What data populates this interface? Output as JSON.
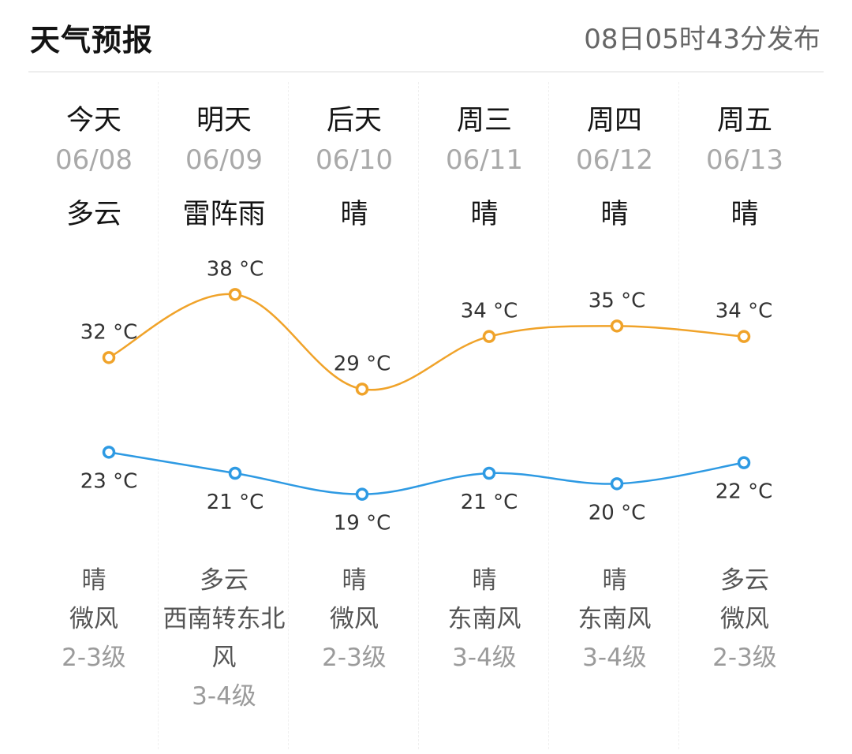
{
  "header": {
    "title": "天气预报",
    "published": "08日05时43分发布"
  },
  "days": [
    {
      "name": "今天",
      "date": "06/08",
      "day_weather": "多云",
      "night_weather": "晴",
      "wind_dir": "微风",
      "wind_level": "2-3级"
    },
    {
      "name": "明天",
      "date": "06/09",
      "day_weather": "雷阵雨",
      "night_weather": "多云",
      "wind_dir": "西南转东北风",
      "wind_level": "3-4级"
    },
    {
      "name": "后天",
      "date": "06/10",
      "day_weather": "晴",
      "night_weather": "晴",
      "wind_dir": "微风",
      "wind_level": "2-3级"
    },
    {
      "name": "周三",
      "date": "06/11",
      "day_weather": "晴",
      "night_weather": "晴",
      "wind_dir": "东南风",
      "wind_level": "3-4级"
    },
    {
      "name": "周四",
      "date": "06/12",
      "day_weather": "晴",
      "night_weather": "晴",
      "wind_dir": "东南风",
      "wind_level": "3-4级"
    },
    {
      "name": "周五",
      "date": "06/13",
      "day_weather": "晴",
      "night_weather": "多云",
      "wind_dir": "微风",
      "wind_level": "2-3级"
    }
  ],
  "chart_data": {
    "type": "line",
    "categories": [
      "06/08",
      "06/09",
      "06/10",
      "06/11",
      "06/12",
      "06/13"
    ],
    "series": [
      {
        "values": [
          32,
          38,
          29,
          34,
          35,
          34
        ],
        "color": "#f0a32a"
      },
      {
        "values": [
          23,
          21,
          19,
          21,
          20,
          22
        ],
        "color": "#2e9ae3"
      }
    ],
    "unit": "°C",
    "ylim": [
      15,
      42
    ],
    "grid": false
  }
}
